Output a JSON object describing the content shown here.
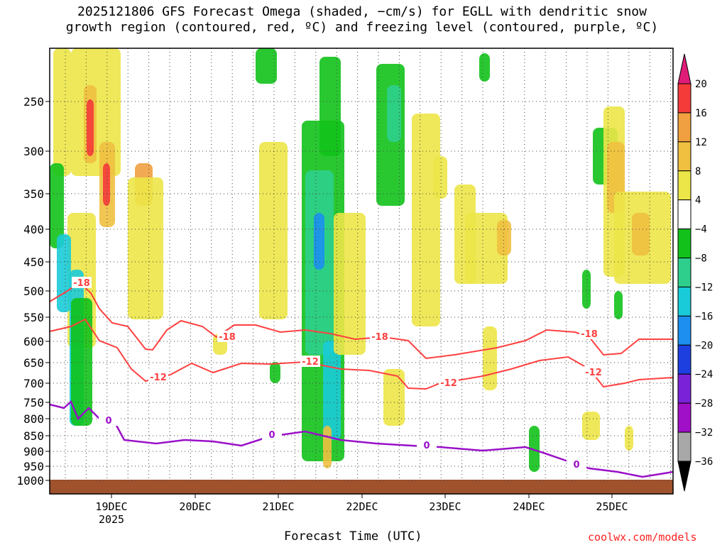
{
  "chart_data": {
    "type": "heatmap",
    "title_lines": [
      "2025121806 GFS Forecast Omega (shaded, −cm/s) for EGLL with dendritic snow",
      "growth region (contoured, red, ºC) and freezing level (contoured, purple, ºC)"
    ],
    "xlabel": "Forecast Time (UTC)",
    "credit": "coolwx.com/models",
    "x_ticks": [
      "19DEC",
      "20DEC",
      "21DEC",
      "22DEC",
      "23DEC",
      "24DEC",
      "25DEC"
    ],
    "x_year_label": "2025",
    "y_ticks": [
      "250",
      "300",
      "350",
      "400",
      "450",
      "500",
      "550",
      "600",
      "650",
      "700",
      "750",
      "800",
      "850",
      "900",
      "950",
      "1000"
    ],
    "y_scale": "log-pressure (hPa)",
    "grid": true,
    "colorbar_labels": [
      "20",
      "16",
      "12",
      "8",
      "4",
      "−4",
      "−8",
      "−12",
      "−16",
      "−20",
      "−24",
      "−28",
      "−32",
      "−36"
    ],
    "colorbar_colors": [
      "#e01b78",
      "#f53a3a",
      "#f0a040",
      "#f0c040",
      "#ece648",
      "#ffffff",
      "#12c21b",
      "#2ecf8c",
      "#19cbd8",
      "#1c8ff0",
      "#1e3fe0",
      "#7a22d8",
      "#a010c8",
      "#a8a8a8",
      "#000000"
    ],
    "contour_labels": {
      "dendritic_upper": "-18",
      "dendritic_lower": "-12",
      "freezing": "0"
    },
    "colors": {
      "dendritic_contour": "#ff4040",
      "freezing_contour": "#9a10c8",
      "ground": "#a0522d"
    }
  }
}
